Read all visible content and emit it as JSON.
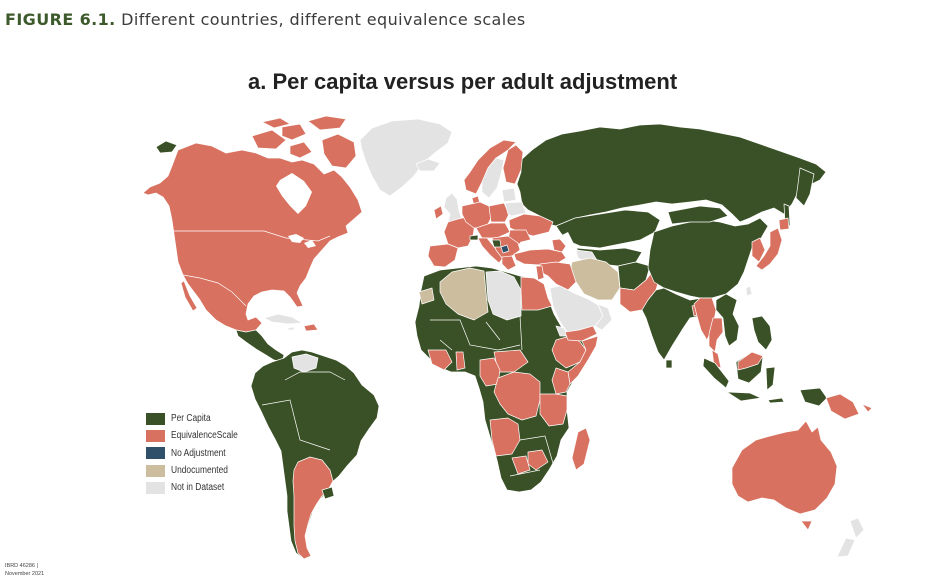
{
  "figure": {
    "label": "FIGURE 6.1.",
    "caption": "Different countries, different equivalence scales"
  },
  "panel": {
    "title": "a. Per capita versus per adult adjustment"
  },
  "legend": {
    "items": [
      {
        "label": "Per Capita",
        "color": "#3a5127"
      },
      {
        "label": "EquivalenceScale",
        "color": "#d8715f"
      },
      {
        "label": "No Adjustment",
        "color": "#2f5068"
      },
      {
        "label": "Undocumented",
        "color": "#cdbd9f"
      },
      {
        "label": "Not in Dataset",
        "color": "#e3e3e3"
      }
    ]
  },
  "source_note": {
    "map_id": "IBRD 46286 |",
    "date": "November 2021"
  }
}
